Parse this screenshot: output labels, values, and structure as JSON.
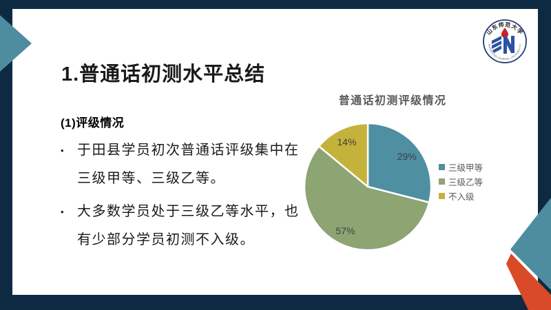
{
  "slide": {
    "title": "1.普通话初测水平总结",
    "section_heading": "(1)评级情况",
    "bullet_glyph": "•",
    "bullets": [
      {
        "lines": [
          "于田县学员初次普通话评级集中在",
          "三级甲等、三级乙等。"
        ]
      },
      {
        "lines": [
          "大多数学员处于三级乙等水平，也",
          "有少部分学员初测不入级。"
        ]
      }
    ]
  },
  "logo": {
    "top_text": "山东师范大学",
    "bottom_text": "SHANDONG NORMAL UNIVERSITY"
  },
  "chart_data": {
    "type": "pie",
    "title": "普通话初测评级情况",
    "categories": [
      "三级甲等",
      "三级乙等",
      "不入级"
    ],
    "values": [
      29,
      57,
      14
    ],
    "labels": [
      "29%",
      "57%",
      "14%"
    ],
    "colors": [
      "#4E8FA2",
      "#8DA473",
      "#C5B23B"
    ],
    "legend_position": "right",
    "start_angle_deg": 0,
    "label_color": "#3F3F3F",
    "title_color": "#595959"
  },
  "colors": {
    "frame_navy": "#0D2A42",
    "accent_teal": "#4E8CA0",
    "accent_orange": "#D94A28",
    "slide_background": "#FFFFFF"
  }
}
